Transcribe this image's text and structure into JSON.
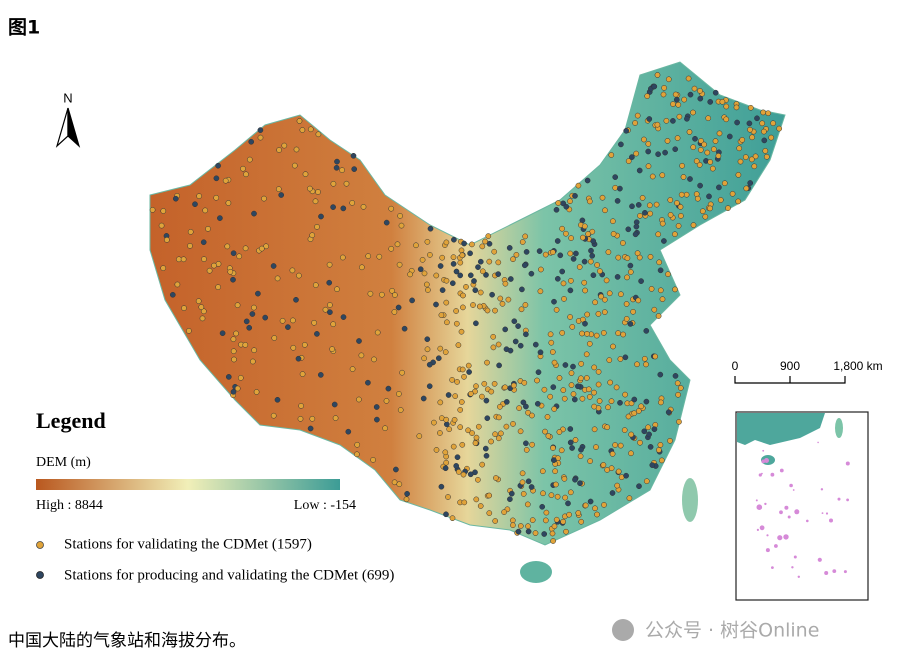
{
  "header": {
    "title": "图1"
  },
  "map": {
    "north": "N",
    "legend": {
      "title": "Legend",
      "dem_label": "DEM (m)",
      "high": "High : 8844",
      "low": "Low : -154",
      "items": [
        {
          "label": "Stations for validating the CDMet (1597)"
        },
        {
          "label": "Stations for producing and validating the CDMet (699)"
        }
      ]
    },
    "scale": {
      "labels": [
        "0",
        "900",
        "1,800 km"
      ]
    }
  },
  "caption": "中国大陆的气象站和海拔分布。",
  "watermark": "公众号 · 树谷Online"
}
